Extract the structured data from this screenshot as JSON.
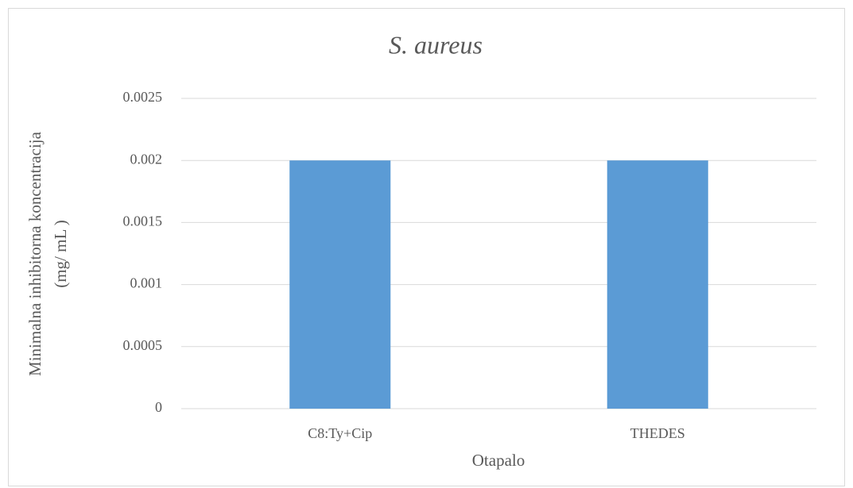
{
  "chart_data": {
    "type": "bar",
    "title": "S. aureus",
    "y_label": [
      "Minimalna inhibitorna koncentracija",
      "(mg/ mL )"
    ],
    "x_label": "Otapalo",
    "categories": [
      "C8:Ty+Cip",
      "THEDES"
    ],
    "values": [
      0.002,
      0.002
    ],
    "color": "#5b9bd5",
    "ylim": [
      0,
      0.0025
    ],
    "yticks": [
      0,
      0.0005,
      0.001,
      0.0015,
      0.002,
      0.0025
    ],
    "grid": true
  }
}
